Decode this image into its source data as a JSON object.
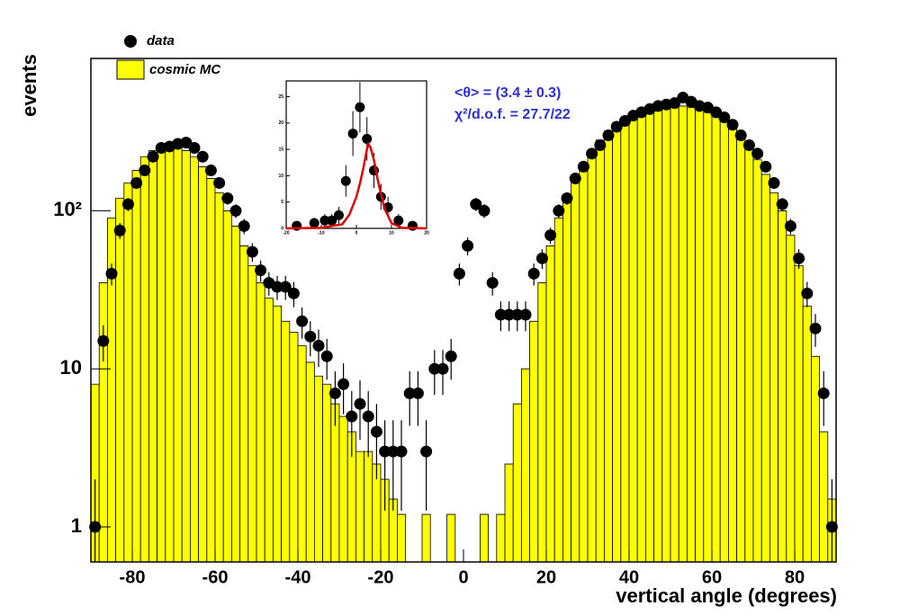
{
  "chart_data": [
    {
      "type": "histogram",
      "xlabel": "vertical angle (degrees)",
      "ylabel": "events",
      "annotations": [
        "<θ> = (3.4 ± 0.3)",
        "χ²/d.o.f. = 27.7/22"
      ],
      "annotation_color": "#2f2fd0",
      "log_y": true,
      "xlim": [
        -90,
        90
      ],
      "ylim": [
        0.6,
        920
      ],
      "xticks": [
        -80,
        -60,
        -40,
        -20,
        0,
        20,
        40,
        60,
        80
      ],
      "yticks": [
        1,
        10,
        {
          "value": 100,
          "label": "10²"
        }
      ],
      "bins": [
        -90,
        -88,
        -86,
        -84,
        -82,
        -80,
        -78,
        -76,
        -74,
        -72,
        -70,
        -68,
        -66,
        -64,
        -62,
        -60,
        -58,
        -56,
        -54,
        -52,
        -50,
        -48,
        -46,
        -44,
        -42,
        -40,
        -38,
        -36,
        -34,
        -32,
        -30,
        -28,
        -26,
        -24,
        -22,
        -20,
        -18,
        -16,
        -14,
        -12,
        -10,
        -8,
        -6,
        -4,
        -2,
        0,
        2,
        4,
        6,
        8,
        10,
        12,
        14,
        16,
        18,
        20,
        22,
        24,
        26,
        28,
        30,
        32,
        34,
        36,
        38,
        40,
        42,
        44,
        46,
        48,
        50,
        52,
        54,
        56,
        58,
        60,
        62,
        64,
        66,
        68,
        70,
        72,
        74,
        76,
        78,
        80,
        82,
        84,
        86,
        88,
        90
      ],
      "series": [
        {
          "name": "cosmic MC",
          "color": "#ffff00",
          "draw": "filled",
          "values": [
            8,
            35,
            90,
            120,
            150,
            180,
            220,
            240,
            250,
            250,
            250,
            240,
            220,
            190,
            160,
            130,
            100,
            80,
            60,
            45,
            35,
            28,
            25,
            20,
            17,
            14,
            11,
            9,
            8,
            6,
            5,
            4,
            3,
            3,
            2.5,
            2,
            1.5,
            1.2,
            0,
            0,
            1.2,
            0,
            0,
            1.2,
            0,
            0,
            0,
            1.2,
            0,
            1.2,
            2.5,
            6,
            10,
            20,
            35,
            60,
            90,
            120,
            160,
            200,
            240,
            280,
            320,
            360,
            390,
            420,
            440,
            450,
            460,
            470,
            470,
            460,
            450,
            440,
            420,
            400,
            370,
            330,
            290,
            250,
            210,
            170,
            130,
            100,
            70,
            45,
            25,
            12,
            4,
            1.5
          ]
        },
        {
          "name": "data",
          "color": "#000000",
          "draw": "points",
          "values": [
            1,
            15,
            40,
            75,
            110,
            150,
            180,
            220,
            250,
            255,
            265,
            270,
            250,
            220,
            180,
            150,
            120,
            100,
            80,
            55,
            42,
            35,
            33,
            33,
            30,
            20,
            16,
            14,
            12,
            7,
            8,
            5,
            6,
            5,
            4,
            3,
            3,
            3,
            7,
            7,
            3,
            10,
            10,
            12,
            40,
            60,
            110,
            100,
            35,
            22,
            22,
            22,
            22,
            40,
            50,
            70,
            100,
            120,
            160,
            190,
            230,
            260,
            300,
            340,
            370,
            400,
            420,
            440,
            460,
            470,
            480,
            520,
            490,
            460,
            450,
            420,
            390,
            350,
            300,
            260,
            230,
            190,
            150,
            110,
            80,
            50,
            30,
            18,
            7,
            1
          ]
        }
      ]
    },
    {
      "type": "scatter",
      "xlim": [
        -20,
        20
      ],
      "ylim": [
        0,
        28
      ],
      "xticks": [
        -20,
        -10,
        0,
        10,
        20
      ],
      "yticks": [
        0,
        5,
        10,
        15,
        20,
        25
      ],
      "points": {
        "color": "#000000",
        "x": [
          -17,
          -12,
          -9,
          -7,
          -5,
          -3,
          -1,
          1,
          3,
          5,
          7,
          9,
          12,
          16
        ],
        "values": [
          0.5,
          1,
          1.5,
          1.5,
          2.5,
          9,
          18,
          23,
          17,
          11,
          6,
          4,
          1.5,
          0.5
        ]
      },
      "fit": {
        "color": "#dd0000",
        "x": [
          -20,
          -10,
          -4,
          -2,
          0,
          1,
          2,
          3,
          3.4,
          4,
          5,
          6,
          7,
          8,
          10,
          13,
          20
        ],
        "values": [
          0,
          0.1,
          0.8,
          2.6,
          6,
          8.5,
          11.5,
          15,
          16,
          15.4,
          13,
          9.5,
          6.5,
          3.8,
          1,
          0.1,
          0
        ]
      }
    }
  ]
}
